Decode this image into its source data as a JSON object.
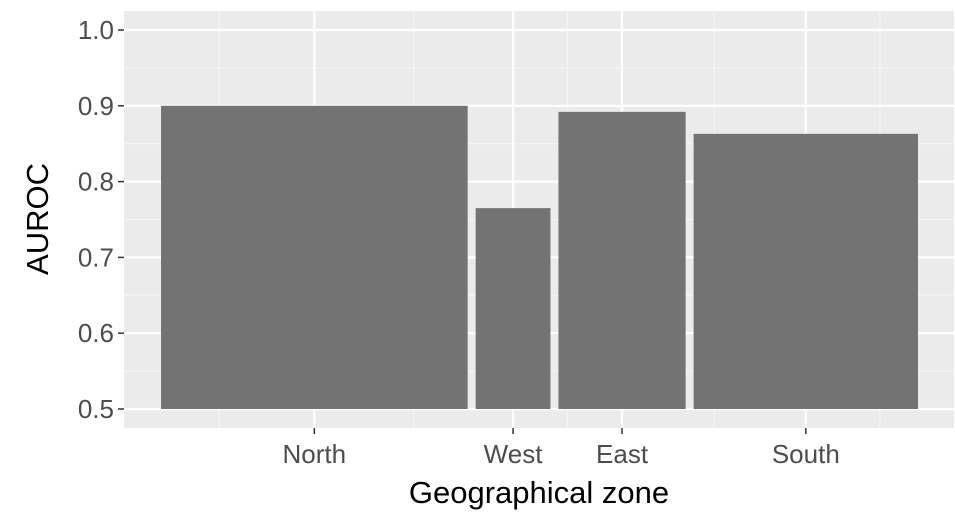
{
  "chart_data": {
    "type": "bar",
    "title": "",
    "xlabel": "Geographical zone",
    "ylabel": "AUROC",
    "categories": [
      "North",
      "West",
      "East",
      "South"
    ],
    "values": [
      0.9,
      0.765,
      0.892,
      0.863
    ],
    "bar_widths": [
      0.41,
      0.1,
      0.17,
      0.3
    ],
    "ylim": [
      0.5,
      1.0
    ],
    "y_ticks": [
      0.5,
      0.6,
      0.7,
      0.8,
      0.9,
      1.0
    ],
    "y_tick_labels": [
      "0.5",
      "0.6",
      "0.7",
      "0.8",
      "0.9",
      "1.0"
    ],
    "grid": true,
    "legend": "none",
    "colors": {
      "panel_background": "#ebebeb",
      "grid_major": "#ffffff",
      "grid_minor": "#f5f5f5",
      "bar_fill": "#737373",
      "tick": "#333333"
    }
  }
}
